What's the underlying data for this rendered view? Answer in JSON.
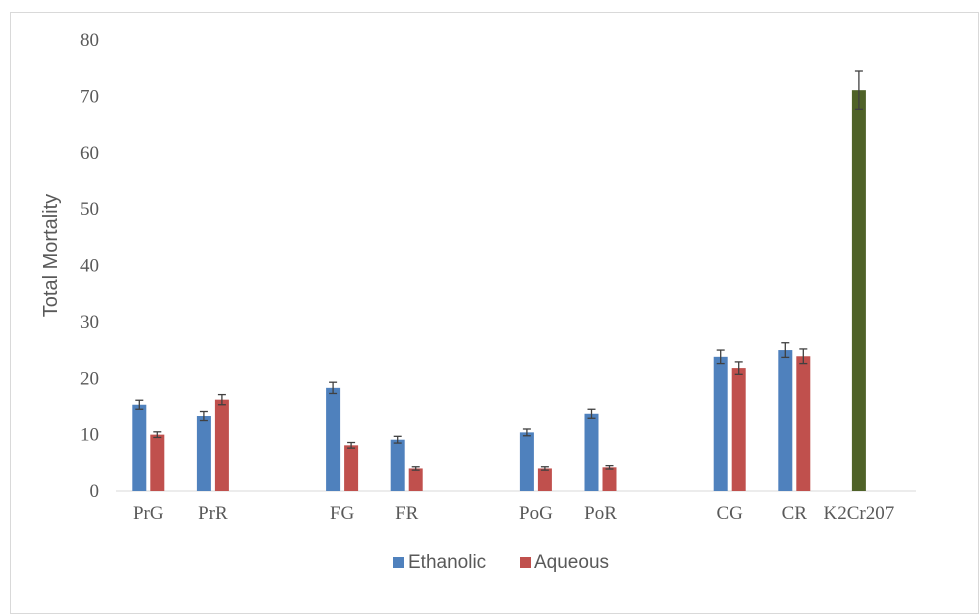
{
  "chart_data": {
    "type": "bar",
    "title": "",
    "xlabel": "",
    "ylabel": "Total Mortality",
    "ylim": [
      0,
      80
    ],
    "yticks": [
      0,
      10,
      20,
      30,
      40,
      50,
      60,
      70,
      80
    ],
    "grid": false,
    "legend_position": "bottom",
    "colors": {
      "Ethanolic": "#4f81bd",
      "Aqueous": "#c0504d",
      "K2Cr207": "#4f6228"
    },
    "groups": [
      {
        "categories": [
          "PrG",
          "PrR"
        ]
      },
      {
        "categories": [
          "FG",
          "FR"
        ]
      },
      {
        "categories": [
          "PoG",
          "PoR"
        ]
      },
      {
        "categories": [
          "CG",
          "CR",
          "K2Cr207"
        ]
      }
    ],
    "categories": [
      "PrG",
      "PrR",
      "FG",
      "FR",
      "PoG",
      "PoR",
      "CG",
      "CR",
      "K2Cr207"
    ],
    "series": [
      {
        "name": "Ethanolic",
        "values": [
          15.3,
          13.3,
          18.3,
          9.1,
          10.4,
          13.7,
          23.8,
          25.0,
          null
        ],
        "errors": [
          0.8,
          0.8,
          1.0,
          0.6,
          0.6,
          0.8,
          1.2,
          1.3,
          null
        ]
      },
      {
        "name": "Aqueous",
        "values": [
          10.0,
          16.2,
          8.1,
          4.0,
          4.0,
          4.2,
          21.8,
          23.9,
          null
        ],
        "errors": [
          0.5,
          0.9,
          0.5,
          0.3,
          0.3,
          0.3,
          1.1,
          1.3,
          null
        ]
      },
      {
        "values": [
          null,
          null,
          null,
          null,
          null,
          null,
          null,
          null,
          71.1
        ],
        "errors": [
          null,
          null,
          null,
          null,
          null,
          null,
          null,
          null,
          3.4
        ]
      }
    ]
  }
}
